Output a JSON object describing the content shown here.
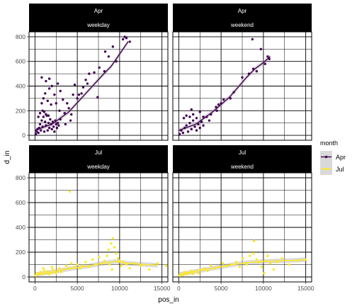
{
  "chart_data": {
    "type": "scatter",
    "xlabel": "pos_in",
    "ylabel": "d_in",
    "xlim": [
      -700,
      15700
    ],
    "ylim": [
      -40,
      840
    ],
    "x_ticks": [
      0,
      5000,
      10000,
      15000
    ],
    "y_ticks": [
      0,
      200,
      400,
      600,
      800
    ],
    "x_tick_labels": [
      "0",
      "5000",
      "10000",
      "15000"
    ],
    "y_tick_labels": [
      "0",
      "200",
      "400",
      "600",
      "800"
    ],
    "grid": true,
    "legend": {
      "title": "month",
      "placement": "right",
      "entries": [
        {
          "label": "Apr",
          "color": "#440154"
        },
        {
          "label": "Jul",
          "color": "#fde725"
        }
      ]
    },
    "panels": [
      {
        "strip_top": "Apr",
        "strip_bottom": "weekday",
        "month": "Apr",
        "points": [
          [
            100,
            10
          ],
          [
            200,
            30
          ],
          [
            300,
            50
          ],
          [
            400,
            20
          ],
          [
            500,
            60
          ],
          [
            600,
            90
          ],
          [
            700,
            40
          ],
          [
            800,
            120
          ],
          [
            900,
            70
          ],
          [
            1000,
            150
          ],
          [
            1100,
            30
          ],
          [
            1200,
            110
          ],
          [
            1300,
            80
          ],
          [
            1400,
            160
          ],
          [
            1500,
            40
          ],
          [
            1600,
            100
          ],
          [
            1700,
            60
          ],
          [
            1800,
            130
          ],
          [
            1900,
            90
          ],
          [
            2000,
            50
          ],
          [
            2100,
            110
          ],
          [
            2200,
            70
          ],
          [
            2300,
            30
          ],
          [
            2400,
            120
          ],
          [
            2500,
            90
          ],
          [
            2600,
            60
          ],
          [
            2700,
            100
          ],
          [
            2800,
            80
          ],
          [
            3000,
            130
          ],
          [
            400,
            150
          ],
          [
            600,
            180
          ],
          [
            900,
            200
          ],
          [
            1100,
            190
          ],
          [
            1300,
            170
          ],
          [
            1600,
            160
          ],
          [
            800,
            260
          ],
          [
            1000,
            300
          ],
          [
            1200,
            340
          ],
          [
            1500,
            280
          ],
          [
            1700,
            380
          ],
          [
            800,
            470
          ],
          [
            1300,
            440
          ],
          [
            1700,
            460
          ],
          [
            2000,
            400
          ],
          [
            2300,
            330
          ],
          [
            2500,
            260
          ],
          [
            2700,
            420
          ],
          [
            3000,
            360
          ],
          [
            3300,
            290
          ],
          [
            3500,
            180
          ],
          [
            3800,
            260
          ],
          [
            4000,
            220
          ],
          [
            4200,
            120
          ],
          [
            4500,
            330
          ],
          [
            4700,
            410
          ],
          [
            5000,
            300
          ],
          [
            5200,
            330
          ],
          [
            5500,
            340
          ],
          [
            5700,
            390
          ],
          [
            6000,
            450
          ],
          [
            6200,
            420
          ],
          [
            6400,
            500
          ],
          [
            7000,
            510
          ],
          [
            7600,
            550
          ],
          [
            8300,
            680
          ],
          [
            8700,
            640
          ],
          [
            9200,
            720
          ],
          [
            9600,
            600
          ],
          [
            10400,
            780
          ],
          [
            10600,
            800
          ],
          [
            10800,
            790
          ],
          [
            11200,
            760
          ],
          [
            8200,
            520
          ],
          [
            7400,
            310
          ],
          [
            3600,
            90
          ],
          [
            4300,
            170
          ],
          [
            2900,
            200
          ],
          [
            1900,
            250
          ]
        ],
        "smooth": [
          [
            0,
            40
          ],
          [
            2000,
            90
          ],
          [
            4000,
            190
          ],
          [
            6000,
            340
          ],
          [
            8000,
            490
          ],
          [
            9000,
            560
          ],
          [
            10000,
            660
          ],
          [
            11000,
            760
          ]
        ]
      },
      {
        "strip_top": "Apr",
        "strip_bottom": "weekend",
        "month": "Apr",
        "points": [
          [
            100,
            10
          ],
          [
            300,
            40
          ],
          [
            500,
            20
          ],
          [
            700,
            60
          ],
          [
            900,
            80
          ],
          [
            1100,
            30
          ],
          [
            1300,
            100
          ],
          [
            1500,
            50
          ],
          [
            1700,
            120
          ],
          [
            1900,
            70
          ],
          [
            2100,
            40
          ],
          [
            2300,
            90
          ],
          [
            2500,
            60
          ],
          [
            2700,
            110
          ],
          [
            2900,
            80
          ],
          [
            600,
            140
          ],
          [
            900,
            160
          ],
          [
            1300,
            150
          ],
          [
            1700,
            170
          ],
          [
            2100,
            140
          ],
          [
            1500,
            210
          ],
          [
            2500,
            190
          ],
          [
            2900,
            150
          ],
          [
            3300,
            150
          ],
          [
            3800,
            170
          ],
          [
            4400,
            230
          ],
          [
            4700,
            250
          ],
          [
            5300,
            290
          ],
          [
            6100,
            300
          ],
          [
            6500,
            350
          ],
          [
            7500,
            470
          ],
          [
            8300,
            500
          ],
          [
            8800,
            540
          ],
          [
            9200,
            520
          ],
          [
            10200,
            580
          ],
          [
            10700,
            620
          ],
          [
            8700,
            780
          ],
          [
            9700,
            700
          ],
          [
            10500,
            640
          ],
          [
            5000,
            260
          ],
          [
            4500,
            200
          ],
          [
            3600,
            120
          ]
        ],
        "smooth": [
          [
            0,
            40
          ],
          [
            2000,
            90
          ],
          [
            4000,
            190
          ],
          [
            6000,
            310
          ],
          [
            8000,
            470
          ],
          [
            9000,
            540
          ],
          [
            10000,
            590
          ],
          [
            10800,
            640
          ]
        ]
      },
      {
        "strip_top": "Jul",
        "strip_bottom": "weekday",
        "month": "Jul",
        "points": [
          [
            100,
            10
          ],
          [
            300,
            30
          ],
          [
            500,
            20
          ],
          [
            700,
            40
          ],
          [
            900,
            25
          ],
          [
            1100,
            50
          ],
          [
            1300,
            30
          ],
          [
            1500,
            45
          ],
          [
            1700,
            20
          ],
          [
            1900,
            35
          ],
          [
            2100,
            60
          ],
          [
            2300,
            40
          ],
          [
            2500,
            30
          ],
          [
            2700,
            50
          ],
          [
            2900,
            70
          ],
          [
            3100,
            40
          ],
          [
            3400,
            60
          ],
          [
            3700,
            90
          ],
          [
            4000,
            70
          ],
          [
            4300,
            110
          ],
          [
            4600,
            80
          ],
          [
            5000,
            100
          ],
          [
            5300,
            70
          ],
          [
            5600,
            90
          ],
          [
            6000,
            120
          ],
          [
            6400,
            80
          ],
          [
            6800,
            140
          ],
          [
            7200,
            100
          ],
          [
            7600,
            160
          ],
          [
            7900,
            110
          ],
          [
            8200,
            130
          ],
          [
            8500,
            170
          ],
          [
            8700,
            220
          ],
          [
            9000,
            270
          ],
          [
            9200,
            310
          ],
          [
            9400,
            240
          ],
          [
            9600,
            190
          ],
          [
            9800,
            150
          ],
          [
            10000,
            130
          ],
          [
            10200,
            90
          ],
          [
            10400,
            120
          ],
          [
            10800,
            100
          ],
          [
            11200,
            70
          ],
          [
            11800,
            110
          ],
          [
            12500,
            90
          ],
          [
            13500,
            60
          ],
          [
            14500,
            110
          ],
          [
            15500,
            90
          ],
          [
            4100,
            690
          ],
          [
            8800,
            100
          ],
          [
            9100,
            60
          ],
          [
            1000,
            70
          ],
          [
            2000,
            80
          ]
        ],
        "smooth": [
          [
            0,
            20
          ],
          [
            2000,
            40
          ],
          [
            4000,
            65
          ],
          [
            6000,
            85
          ],
          [
            8000,
            110
          ],
          [
            9500,
            125
          ],
          [
            11000,
            110
          ],
          [
            13000,
            100
          ],
          [
            14500,
            95
          ]
        ]
      },
      {
        "strip_top": "Jul",
        "strip_bottom": "weekend",
        "month": "Jul",
        "points": [
          [
            100,
            10
          ],
          [
            300,
            25
          ],
          [
            500,
            15
          ],
          [
            700,
            40
          ],
          [
            900,
            20
          ],
          [
            1100,
            35
          ],
          [
            1300,
            30
          ],
          [
            1500,
            50
          ],
          [
            1700,
            25
          ],
          [
            2000,
            45
          ],
          [
            2300,
            30
          ],
          [
            2600,
            60
          ],
          [
            3000,
            70
          ],
          [
            3400,
            50
          ],
          [
            3800,
            90
          ],
          [
            4200,
            70
          ],
          [
            4700,
            80
          ],
          [
            5200,
            110
          ],
          [
            5700,
            90
          ],
          [
            6200,
            100
          ],
          [
            6800,
            120
          ],
          [
            7200,
            80
          ],
          [
            7600,
            150
          ],
          [
            8000,
            100
          ],
          [
            8400,
            170
          ],
          [
            8800,
            190
          ],
          [
            9200,
            140
          ],
          [
            9500,
            120
          ],
          [
            9800,
            80
          ],
          [
            10200,
            130
          ],
          [
            10500,
            170
          ],
          [
            10800,
            110
          ],
          [
            11200,
            60
          ],
          [
            11600,
            120
          ],
          [
            12200,
            150
          ],
          [
            13000,
            100
          ],
          [
            14000,
            130
          ],
          [
            15000,
            140
          ],
          [
            8900,
            290
          ],
          [
            10100,
            30
          ]
        ],
        "smooth": [
          [
            0,
            20
          ],
          [
            2000,
            45
          ],
          [
            4000,
            70
          ],
          [
            6000,
            95
          ],
          [
            8000,
            115
          ],
          [
            10000,
            125
          ],
          [
            12000,
            130
          ],
          [
            14000,
            135
          ],
          [
            15000,
            140
          ]
        ]
      }
    ]
  }
}
